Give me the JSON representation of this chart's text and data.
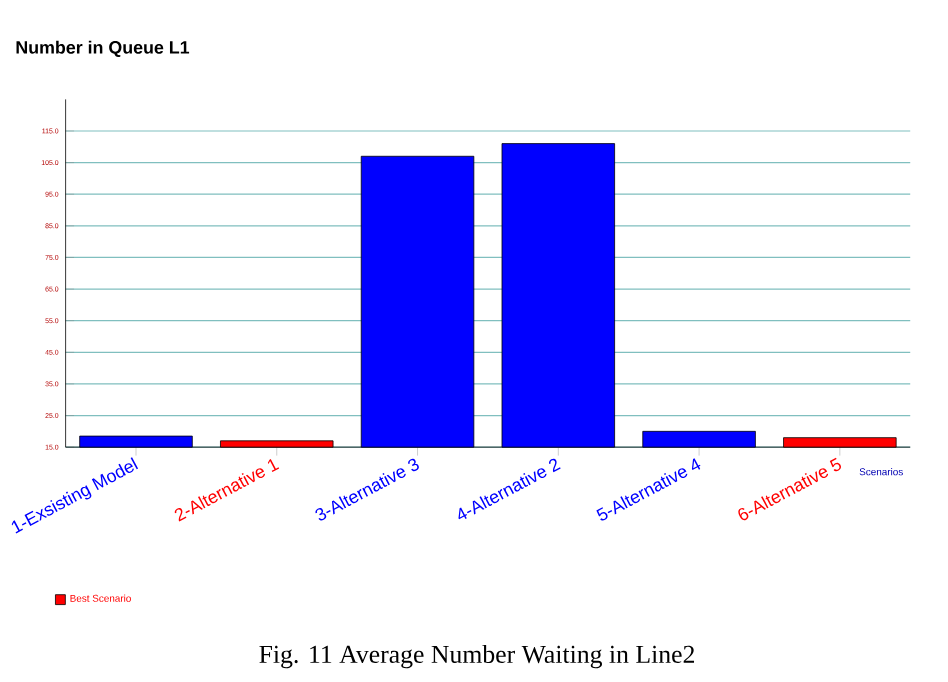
{
  "chart_data": {
    "type": "bar",
    "title": "Number in Queue L1",
    "xlabel": "Scenarios",
    "categories": [
      "1-Exsisting Model",
      "2-Alternative 1",
      "3-Alternative 3",
      "4-Alternative 2",
      "5-Alternative 4",
      "6-Alternative 5"
    ],
    "series": [
      {
        "color": "#0000ff",
        "values": [
          18.5,
          null,
          107,
          111,
          20,
          null
        ]
      },
      {
        "name": "Best Scenario",
        "color": "#ff0000",
        "values": [
          null,
          17,
          null,
          null,
          null,
          18
        ]
      }
    ],
    "ylim": [
      15,
      125
    ],
    "yticks": [
      {
        "value": 15,
        "label": "15.0"
      },
      {
        "value": 25,
        "label": "25.0"
      },
      {
        "value": 35,
        "label": "35.0"
      },
      {
        "value": 45,
        "label": "45.0"
      },
      {
        "value": 55,
        "label": "55.0"
      },
      {
        "value": 65,
        "label": "65.0"
      },
      {
        "value": 75,
        "label": "75.0"
      },
      {
        "value": 85,
        "label": "85.0"
      },
      {
        "value": 95,
        "label": "95.0"
      },
      {
        "value": 105,
        "label": "105.0"
      },
      {
        "value": 115,
        "label": "115.0"
      }
    ],
    "grid": "y",
    "legend": "bottom left",
    "annotations": [
      "Fig. 11 Average Number Waiting in Line2"
    ]
  }
}
